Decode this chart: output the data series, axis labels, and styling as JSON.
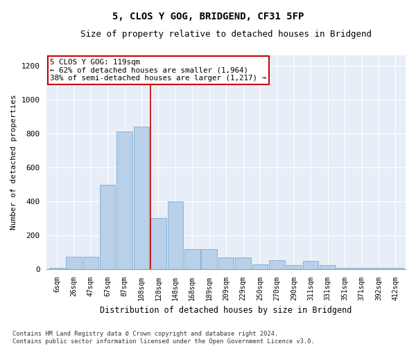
{
  "title": "5, CLOS Y GOG, BRIDGEND, CF31 5FP",
  "subtitle": "Size of property relative to detached houses in Bridgend",
  "xlabel": "Distribution of detached houses by size in Bridgend",
  "ylabel": "Number of detached properties",
  "categories": [
    "6sqm",
    "26sqm",
    "47sqm",
    "67sqm",
    "87sqm",
    "108sqm",
    "128sqm",
    "148sqm",
    "168sqm",
    "189sqm",
    "209sqm",
    "229sqm",
    "250sqm",
    "270sqm",
    "290sqm",
    "311sqm",
    "331sqm",
    "351sqm",
    "371sqm",
    "392sqm",
    "412sqm"
  ],
  "values": [
    5,
    72,
    72,
    498,
    812,
    842,
    302,
    400,
    118,
    118,
    68,
    68,
    28,
    52,
    22,
    48,
    22,
    8,
    5,
    5,
    5
  ],
  "bar_color": "#b8d0e8",
  "bar_edge_color": "#7aadd4",
  "background_color": "#e8eef8",
  "grid_color": "#ffffff",
  "vline_color": "#cc0000",
  "vline_x_index": 5.55,
  "annotation_text": "5 CLOS Y GOG: 119sqm\n← 62% of detached houses are smaller (1,964)\n38% of semi-detached houses are larger (1,217) →",
  "annotation_box_color": "#ffffff",
  "annotation_box_edge": "#cc0000",
  "ylim": [
    0,
    1260
  ],
  "yticks": [
    0,
    200,
    400,
    600,
    800,
    1000,
    1200
  ],
  "footnote": "Contains HM Land Registry data © Crown copyright and database right 2024.\nContains public sector information licensed under the Open Government Licence v3.0."
}
